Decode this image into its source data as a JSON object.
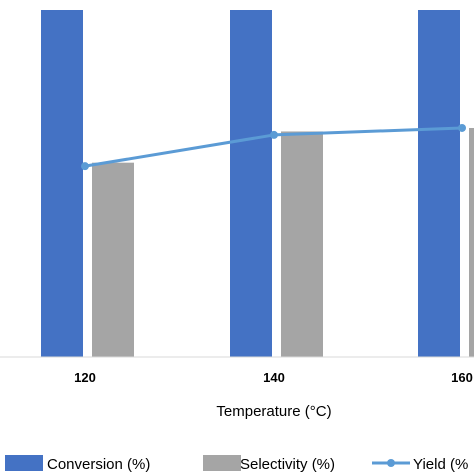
{
  "chart_data": {
    "type": "bar",
    "categories": [
      "120",
      "140",
      "160"
    ],
    "xlabel": "Temperature (°C)",
    "ylabel": "",
    "ylim": [
      0,
      100
    ],
    "legend_position": "bottom",
    "series": [
      {
        "name": "Conversion (%)",
        "type": "bar",
        "color": "#4472C4",
        "values": [
          100,
          100,
          100
        ]
      },
      {
        "name": "Selectivity (%)",
        "type": "bar",
        "color": "#A5A5A5",
        "values": [
          56,
          65,
          66
        ]
      },
      {
        "name": "Yield (%)",
        "type": "line",
        "color": "#5B9BD5",
        "values": [
          55,
          64,
          66
        ]
      }
    ],
    "legend_labels": [
      "Conversion (%)",
      "Selectivity (%)",
      "Yield (%"
    ]
  }
}
